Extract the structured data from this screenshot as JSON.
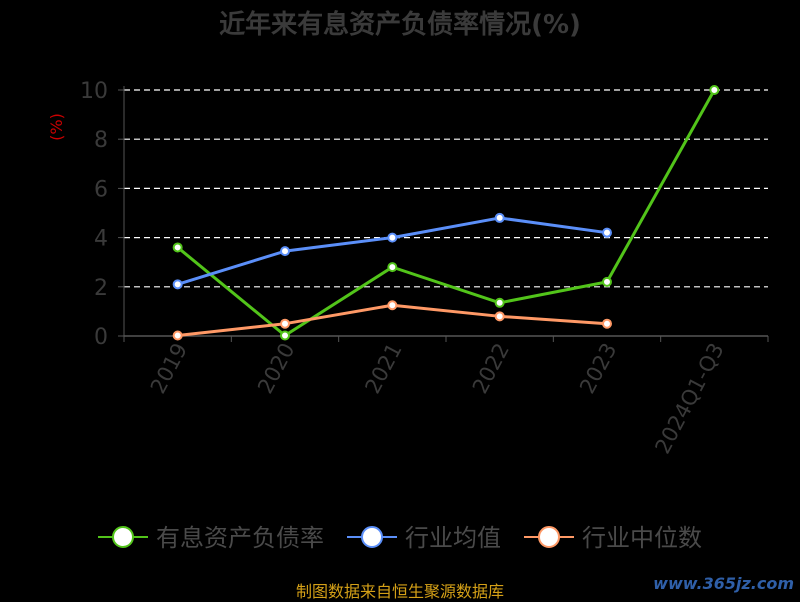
{
  "title": "近年来有息资产负债率情况(%)",
  "source": "制图数据来自恒生聚源数据库",
  "watermark": "www.365jz.com",
  "chart_data": {
    "type": "line",
    "ylabel": "(%)",
    "ylim": [
      0,
      10
    ],
    "yticks": [
      0,
      2,
      4,
      6,
      8,
      10
    ],
    "grid": true,
    "legend_position": "bottom",
    "categories": [
      "2019",
      "2020",
      "2021",
      "2022",
      "2023",
      "2024Q1-Q3"
    ],
    "series": [
      {
        "name": "有息资产负债率",
        "color": "#52c41a",
        "values": [
          3.6,
          0.02,
          2.8,
          1.35,
          2.2,
          10
        ]
      },
      {
        "name": "行业均值",
        "color": "#5b8ff9",
        "values": [
          2.1,
          3.45,
          4.0,
          4.8,
          4.2,
          null
        ]
      },
      {
        "name": "行业中位数",
        "color": "#ff9966",
        "values": [
          0.02,
          0.5,
          1.25,
          0.8,
          0.5,
          null
        ]
      }
    ]
  }
}
